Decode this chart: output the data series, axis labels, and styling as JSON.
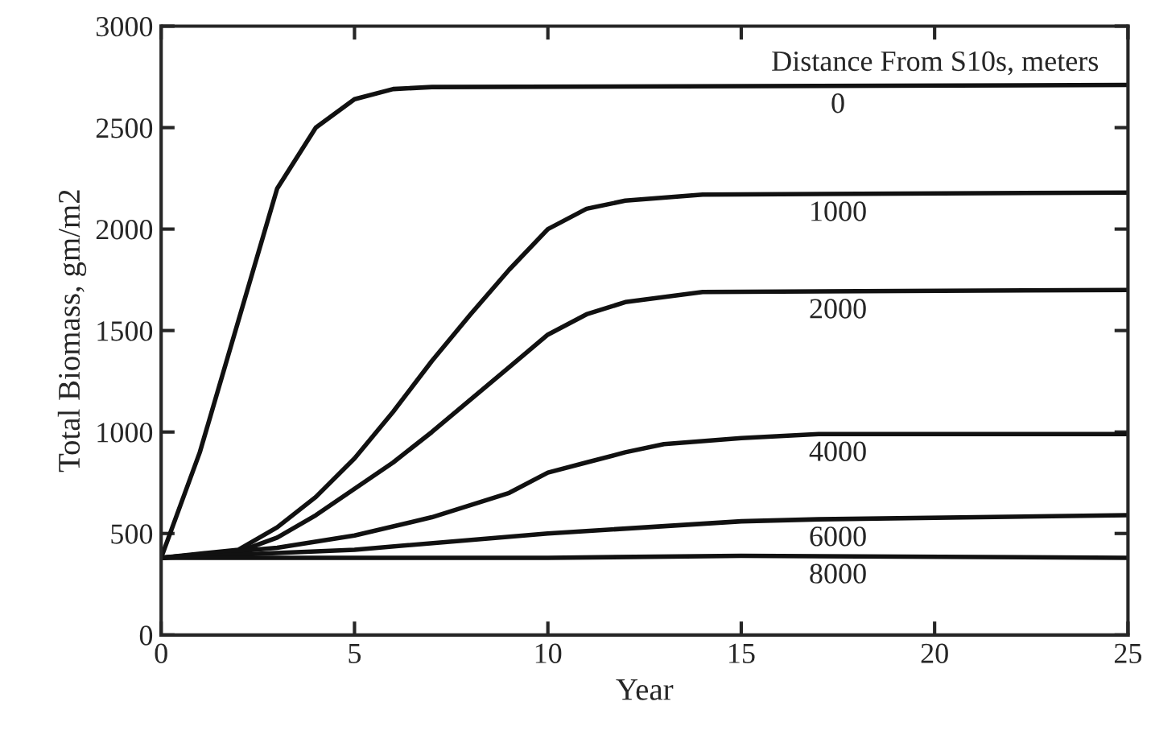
{
  "chart_data": {
    "type": "line",
    "xlabel": "Year",
    "ylabel": "Total Biomass, gm/m2",
    "legend_title": "Distance From S10s, meters",
    "xlim": [
      0,
      25
    ],
    "xticks": [
      0,
      5,
      10,
      15,
      20,
      25
    ],
    "ylim": [
      0,
      3000
    ],
    "yticks": [
      0,
      500,
      1000,
      1500,
      2000,
      2500,
      3000
    ],
    "grid": false,
    "legend": false,
    "marker": "none",
    "line_style": "solid",
    "series": [
      {
        "name": "0",
        "color": "#111111",
        "x": [
          0,
          1,
          2,
          3,
          4,
          5,
          6,
          7,
          25
        ],
        "values": [
          380,
          900,
          1550,
          2200,
          2500,
          2640,
          2690,
          2700,
          2710
        ]
      },
      {
        "name": "1000",
        "color": "#111111",
        "x": [
          0,
          2,
          3,
          4,
          5,
          6,
          7,
          8,
          9,
          10,
          11,
          12,
          14,
          25
        ],
        "values": [
          380,
          420,
          530,
          680,
          870,
          1100,
          1350,
          1580,
          1800,
          2000,
          2100,
          2140,
          2170,
          2180
        ]
      },
      {
        "name": "2000",
        "color": "#111111",
        "x": [
          0,
          2,
          3,
          4,
          5,
          6,
          7,
          8,
          9,
          10,
          11,
          12,
          14,
          25
        ],
        "values": [
          380,
          410,
          480,
          590,
          720,
          850,
          1000,
          1160,
          1320,
          1480,
          1580,
          1640,
          1690,
          1700
        ]
      },
      {
        "name": "4000",
        "color": "#111111",
        "x": [
          0,
          3,
          5,
          7,
          9,
          10,
          11,
          12,
          13,
          15,
          17,
          25
        ],
        "values": [
          380,
          430,
          490,
          580,
          700,
          800,
          850,
          900,
          940,
          970,
          990,
          990
        ]
      },
      {
        "name": "6000",
        "color": "#111111",
        "x": [
          0,
          5,
          10,
          15,
          17,
          25
        ],
        "values": [
          380,
          420,
          500,
          560,
          570,
          590
        ]
      },
      {
        "name": "8000",
        "color": "#111111",
        "x": [
          0,
          10,
          15,
          25
        ],
        "values": [
          380,
          380,
          390,
          380
        ]
      }
    ]
  }
}
